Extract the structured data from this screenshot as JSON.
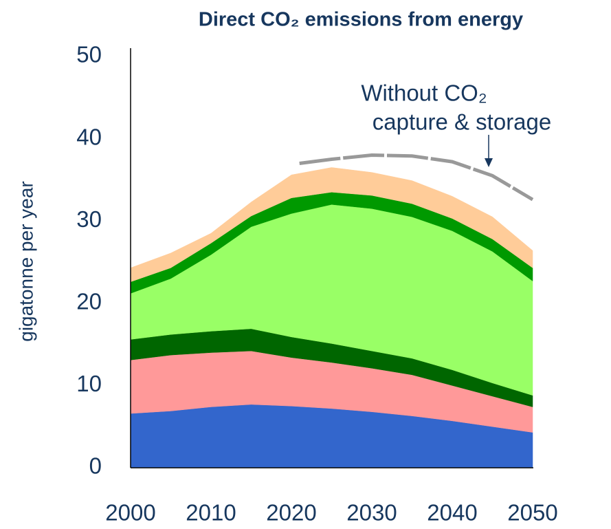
{
  "chart_data": {
    "type": "stacked_area",
    "title": "Direct CO₂ emissions from energy",
    "y_axis_label": "gigatonne per year",
    "annotation": [
      "Without CO₂",
      "capture & storage"
    ],
    "x": [
      2000,
      2005,
      2010,
      2015,
      2020,
      2025,
      2030,
      2035,
      2040,
      2045,
      2050
    ],
    "series": [
      {
        "color": "#3366cc",
        "values": [
          6.6,
          6.9,
          7.4,
          7.7,
          7.5,
          7.2,
          6.8,
          6.3,
          5.7,
          5.0,
          4.3
        ]
      },
      {
        "color": "#ff9999",
        "values": [
          6.5,
          6.8,
          6.6,
          6.5,
          5.9,
          5.6,
          5.3,
          5.0,
          4.3,
          3.7,
          3.1
        ]
      },
      {
        "color": "#006600",
        "values": [
          2.5,
          2.5,
          2.6,
          2.7,
          2.5,
          2.3,
          2.1,
          2.0,
          1.9,
          1.6,
          1.4
        ]
      },
      {
        "color": "#99ff66",
        "values": [
          5.6,
          6.8,
          9.3,
          12.4,
          15.0,
          16.9,
          17.3,
          17.2,
          16.9,
          16.0,
          13.9
        ]
      },
      {
        "color": "#009900",
        "values": [
          1.4,
          1.3,
          1.4,
          1.3,
          1.9,
          1.5,
          1.6,
          1.6,
          1.5,
          1.5,
          1.6
        ]
      },
      {
        "color": "#ffcc99",
        "values": [
          1.7,
          1.8,
          1.2,
          1.7,
          2.8,
          3.0,
          2.8,
          2.8,
          2.7,
          2.7,
          2.1
        ]
      }
    ],
    "overlay": {
      "color": "#999999",
      "x": [
        2021,
        2025,
        2030,
        2035,
        2040,
        2045,
        2050
      ],
      "values": [
        37.0,
        37.5,
        38.0,
        37.9,
        37.2,
        35.5,
        32.6
      ]
    },
    "xlim": [
      2000,
      2050
    ],
    "xticks": [
      2000,
      2010,
      2020,
      2030,
      2040,
      2050
    ],
    "ylim": [
      0,
      50
    ],
    "yticks": [
      0,
      10,
      20,
      30,
      40,
      50
    ]
  }
}
